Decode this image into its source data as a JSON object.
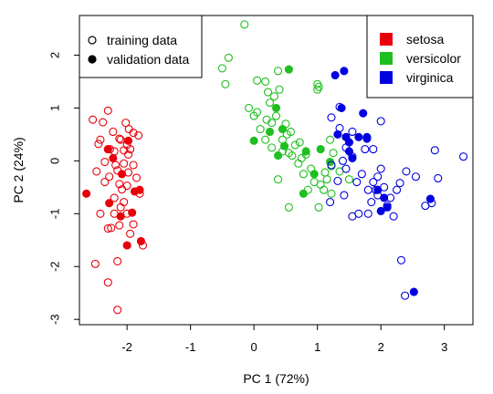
{
  "chart_data": {
    "type": "scatter",
    "xlabel": "PC 1 (72%)",
    "ylabel": "PC 2 (24%)",
    "xlim": [
      -2.75,
      3.45
    ],
    "ylim": [
      -3.1,
      2.75
    ],
    "x_ticks": [
      -2,
      -1,
      0,
      1,
      2,
      3
    ],
    "y_ticks": [
      -3,
      -2,
      -1,
      0,
      1,
      2
    ],
    "grid": false,
    "colors": {
      "setosa": "#e8000b",
      "versicolor": "#1fbf1f",
      "virginica": "#0000e0"
    },
    "legend_marker": {
      "position": "top-left",
      "entries": [
        {
          "label": "training data",
          "style": "open"
        },
        {
          "label": "validation data",
          "style": "filled"
        }
      ]
    },
    "legend_species": {
      "position": "top-right",
      "entries": [
        {
          "label": "setosa",
          "color": "#e8000b"
        },
        {
          "label": "versicolor",
          "color": "#1fbf1f"
        },
        {
          "label": "virginica",
          "color": "#0000e0"
        }
      ]
    },
    "series": [
      {
        "name": "setosa",
        "color": "#e8000b",
        "training": [
          [
            -2.54,
            0.78
          ],
          [
            -2.38,
            0.73
          ],
          [
            -2.3,
            0.95
          ],
          [
            -2.02,
            0.72
          ],
          [
            -1.97,
            0.6
          ],
          [
            -2.22,
            0.55
          ],
          [
            -1.9,
            0.53
          ],
          [
            -2.12,
            0.42
          ],
          [
            -2.42,
            0.4
          ],
          [
            -2.45,
            0.32
          ],
          [
            -2.27,
            0.22
          ],
          [
            -2.2,
            0.18
          ],
          [
            -2.05,
            0.2
          ],
          [
            -1.95,
            0.22
          ],
          [
            -2.1,
            0.4
          ],
          [
            -1.82,
            0.48
          ],
          [
            -2.0,
            0.3
          ],
          [
            -1.98,
            0.12
          ],
          [
            -2.35,
            -0.02
          ],
          [
            -2.18,
            -0.08
          ],
          [
            -2.05,
            -0.05
          ],
          [
            -1.9,
            -0.08
          ],
          [
            -2.15,
            -0.18
          ],
          [
            -1.98,
            -0.22
          ],
          [
            -2.48,
            -0.2
          ],
          [
            -2.28,
            -0.3
          ],
          [
            -1.85,
            -0.32
          ],
          [
            -2.35,
            -0.4
          ],
          [
            -2.12,
            -0.44
          ],
          [
            -2.0,
            -0.47
          ],
          [
            -2.08,
            -0.54
          ],
          [
            -1.8,
            -0.62
          ],
          [
            -2.2,
            -0.7
          ],
          [
            -2.05,
            -0.78
          ],
          [
            -2.1,
            -0.88
          ],
          [
            -2.42,
            -1.0
          ],
          [
            -2.0,
            -1.0
          ],
          [
            -2.2,
            -1.0
          ],
          [
            -2.25,
            -1.27
          ],
          [
            -2.12,
            -1.22
          ],
          [
            -1.9,
            -1.2
          ],
          [
            -2.5,
            -1.95
          ],
          [
            -2.15,
            -1.9
          ],
          [
            -2.3,
            -2.3
          ],
          [
            -1.75,
            -1.6
          ],
          [
            -2.15,
            -2.82
          ],
          [
            -1.95,
            -1.38
          ],
          [
            -2.3,
            -1.28
          ]
        ],
        "validation": [
          [
            -2.64,
            -0.62
          ],
          [
            -1.98,
            0.38
          ],
          [
            -2.22,
            0.05
          ],
          [
            -2.08,
            -0.25
          ],
          [
            -1.8,
            -0.55
          ],
          [
            -2.28,
            -0.8
          ],
          [
            -2.1,
            -1.05
          ],
          [
            -1.92,
            -0.98
          ],
          [
            -2.0,
            -1.6
          ],
          [
            -1.78,
            -1.52
          ],
          [
            -1.88,
            -0.58
          ],
          [
            -2.3,
            0.22
          ]
        ]
      },
      {
        "name": "versicolor",
        "color": "#1fbf1f",
        "training": [
          [
            -0.15,
            2.58
          ],
          [
            -0.5,
            1.75
          ],
          [
            -0.4,
            1.95
          ],
          [
            -0.45,
            1.45
          ],
          [
            0.05,
            1.52
          ],
          [
            0.18,
            1.5
          ],
          [
            0.22,
            1.3
          ],
          [
            0.38,
            1.7
          ],
          [
            0.32,
            1.22
          ],
          [
            0.25,
            1.1
          ],
          [
            -0.08,
            1.0
          ],
          [
            0.05,
            0.92
          ],
          [
            0.0,
            0.85
          ],
          [
            0.2,
            0.78
          ],
          [
            0.1,
            0.6
          ],
          [
            0.35,
            0.85
          ],
          [
            0.4,
            1.35
          ],
          [
            0.28,
            0.72
          ],
          [
            0.5,
            0.7
          ],
          [
            0.52,
            0.5
          ],
          [
            0.45,
            0.4
          ],
          [
            0.58,
            0.55
          ],
          [
            0.65,
            0.3
          ],
          [
            0.72,
            0.35
          ],
          [
            0.18,
            0.4
          ],
          [
            0.28,
            0.25
          ],
          [
            0.45,
            0.18
          ],
          [
            0.55,
            0.15
          ],
          [
            0.6,
            0.1
          ],
          [
            0.75,
            0.05
          ],
          [
            0.7,
            -0.05
          ],
          [
            0.82,
            0.12
          ],
          [
            0.9,
            -0.15
          ],
          [
            0.78,
            -0.25
          ],
          [
            0.95,
            -0.4
          ],
          [
            1.05,
            -0.45
          ],
          [
            1.12,
            -0.22
          ],
          [
            1.1,
            -0.55
          ],
          [
            1.15,
            -0.35
          ],
          [
            1.22,
            -0.62
          ],
          [
            0.85,
            -0.55
          ],
          [
            0.55,
            -0.88
          ],
          [
            1.02,
            -0.88
          ],
          [
            0.38,
            -0.35
          ],
          [
            1.2,
            0.4
          ],
          [
            1.0,
            1.45
          ],
          [
            1.02,
            1.4
          ],
          [
            1.0,
            1.35
          ],
          [
            1.22,
            -0.1
          ],
          [
            1.25,
            0.15
          ],
          [
            1.5,
            -0.35
          ],
          [
            1.35,
            -0.2
          ]
        ],
        "validation": [
          [
            0.55,
            1.73
          ],
          [
            0.35,
            1.0
          ],
          [
            0.0,
            0.38
          ],
          [
            0.48,
            0.28
          ],
          [
            0.82,
            0.18
          ],
          [
            0.38,
            0.1
          ],
          [
            0.95,
            -0.25
          ],
          [
            0.78,
            -0.62
          ],
          [
            1.05,
            0.22
          ],
          [
            0.45,
            0.6
          ],
          [
            1.2,
            -0.02
          ],
          [
            0.25,
            0.55
          ]
        ]
      },
      {
        "name": "virginica",
        "color": "#0000e0",
        "training": [
          [
            1.35,
            1.02
          ],
          [
            1.22,
            0.82
          ],
          [
            1.35,
            0.62
          ],
          [
            1.55,
            0.55
          ],
          [
            1.45,
            0.25
          ],
          [
            1.55,
            0.08
          ],
          [
            1.22,
            -0.08
          ],
          [
            1.4,
            0.0
          ],
          [
            1.7,
            -0.25
          ],
          [
            1.62,
            -0.4
          ],
          [
            1.42,
            -0.65
          ],
          [
            1.85,
            -0.78
          ],
          [
            1.95,
            -0.65
          ],
          [
            2.15,
            -0.7
          ],
          [
            1.8,
            -0.55
          ],
          [
            2.05,
            -0.5
          ],
          [
            1.95,
            -0.3
          ],
          [
            2.25,
            -0.55
          ],
          [
            2.4,
            -0.2
          ],
          [
            2.3,
            -0.42
          ],
          [
            2.55,
            -0.3
          ],
          [
            2.8,
            -0.8
          ],
          [
            2.7,
            -0.85
          ],
          [
            2.9,
            -0.33
          ],
          [
            3.3,
            0.08
          ],
          [
            2.85,
            0.2
          ],
          [
            2.0,
            0.75
          ],
          [
            2.0,
            -0.15
          ],
          [
            1.88,
            0.22
          ],
          [
            1.75,
            0.22
          ],
          [
            2.32,
            -1.88
          ],
          [
            2.38,
            -2.55
          ],
          [
            1.65,
            -1.0
          ],
          [
            1.55,
            -1.05
          ],
          [
            1.92,
            -0.55
          ],
          [
            1.88,
            -0.4
          ],
          [
            1.8,
            -1.0
          ],
          [
            1.32,
            -0.38
          ],
          [
            1.45,
            -0.15
          ],
          [
            2.1,
            -0.85
          ],
          [
            1.2,
            -0.78
          ],
          [
            2.2,
            -1.05
          ]
        ],
        "validation": [
          [
            1.28,
            1.62
          ],
          [
            1.42,
            1.7
          ],
          [
            1.38,
            1.0
          ],
          [
            1.72,
            0.9
          ],
          [
            1.32,
            0.5
          ],
          [
            1.45,
            0.45
          ],
          [
            1.65,
            0.45
          ],
          [
            1.78,
            0.45
          ],
          [
            1.5,
            0.18
          ],
          [
            1.55,
            0.05
          ],
          [
            1.95,
            -0.55
          ],
          [
            2.05,
            -0.7
          ],
          [
            2.1,
            -0.88
          ],
          [
            2.0,
            -0.95
          ],
          [
            2.78,
            -0.72
          ],
          [
            2.52,
            -2.48
          ],
          [
            1.5,
            0.35
          ],
          [
            1.78,
            0.42
          ]
        ]
      }
    ]
  }
}
